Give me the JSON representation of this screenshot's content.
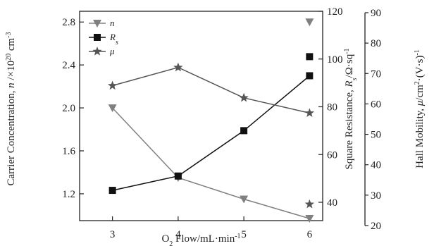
{
  "chart_data": {
    "type": "line",
    "x_axis": {
      "label": "O₂ Flow/mL·min⁻¹",
      "label_parts": [
        "O",
        "2",
        " Flow/mL·min",
        "-1"
      ],
      "ticks": [
        3,
        4,
        5,
        6
      ],
      "range": [
        2.5,
        6.2
      ]
    },
    "left_axis": {
      "label": "Carrier Concentration, n /×10²⁰ cm⁻³",
      "label_parts": [
        "Carrier Concentration, ",
        "n",
        " /×10",
        "20",
        " cm",
        "-3"
      ],
      "ticks": [
        1.2,
        1.6,
        2.0,
        2.4,
        2.8
      ],
      "tick_labels": [
        "1.2",
        "1.6",
        "2.0",
        "2.4",
        "2.8"
      ],
      "range": [
        0.95,
        2.9
      ]
    },
    "right_axis_1": {
      "label": "Square Resistance, Rs/Ω·sq⁻¹",
      "label_parts": [
        "Square Resistance, ",
        "R",
        "s",
        "/Ω·sq",
        "-1"
      ],
      "ticks": [
        40,
        60,
        80,
        100,
        120
      ],
      "range": [
        40,
        120
      ]
    },
    "right_axis_2": {
      "label": "Hall Mobility, μ/cm²·(V·s)⁻¹",
      "label_parts": [
        "Hall Mobility, ",
        "μ",
        "/cm",
        "2",
        "·(V·s)",
        "-1"
      ],
      "ticks": [
        20,
        30,
        40,
        50,
        60,
        70,
        80,
        90
      ],
      "range": [
        20,
        90
      ]
    },
    "series": [
      {
        "name": "n",
        "axis": "left",
        "marker": "triangle-down",
        "color": "#808080",
        "line": {
          "x": [
            3,
            4,
            5,
            6
          ],
          "y": [
            2.0,
            1.35,
            1.15,
            0.97
          ]
        },
        "outliers": [
          {
            "x": 6,
            "y": 2.8
          }
        ]
      },
      {
        "name": "Rs",
        "name_parts": [
          "R",
          "s"
        ],
        "axis": "right_1",
        "marker": "square",
        "color": "#111111",
        "line": {
          "x": [
            3,
            4,
            5,
            6
          ],
          "y": [
            45,
            51,
            70,
            93
          ]
        },
        "outliers": [
          {
            "x": 6,
            "y": 101
          }
        ]
      },
      {
        "name": "μ",
        "axis": "right_2",
        "marker": "star",
        "color": "#555555",
        "line": {
          "x": [
            3,
            4,
            5,
            6
          ],
          "y": [
            66,
            72,
            62,
            57
          ]
        },
        "outliers": [
          {
            "x": 6,
            "y": 27
          }
        ]
      }
    ],
    "legend_position": "top-left",
    "grid": false
  }
}
